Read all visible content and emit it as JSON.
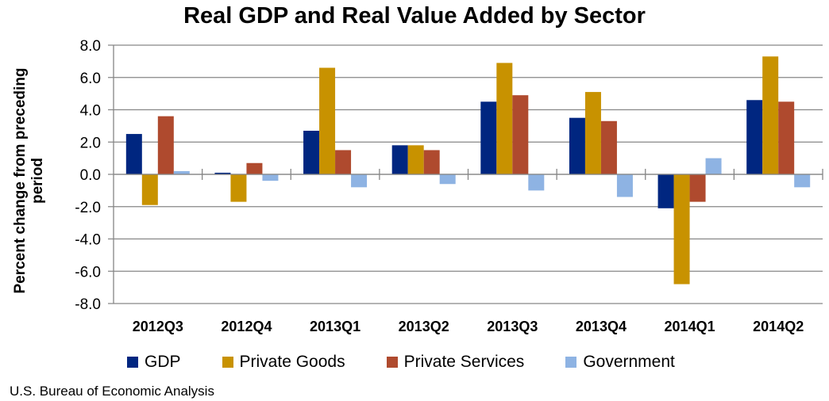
{
  "chart_data": {
    "type": "bar",
    "title": "Real GDP and Real Value Added by Sector",
    "xlabel": "",
    "ylabel": "Percent change from preceding period",
    "ylim": [
      -8,
      8
    ],
    "yticks": [
      "8.0",
      "6.0",
      "4.0",
      "2.0",
      "0.0",
      "-2.0",
      "-4.0",
      "-6.0",
      "-8.0"
    ],
    "categories": [
      "2012Q3",
      "2012Q4",
      "2013Q1",
      "2013Q2",
      "2013Q3",
      "2013Q4",
      "2014Q1",
      "2014Q2"
    ],
    "series": [
      {
        "name": "GDP",
        "color": "#002680",
        "values": [
          2.5,
          0.1,
          2.7,
          1.8,
          4.5,
          3.5,
          -2.1,
          4.6
        ]
      },
      {
        "name": "Private Goods",
        "color": "#C89200",
        "values": [
          -1.9,
          -1.7,
          6.6,
          1.8,
          6.9,
          5.1,
          -6.8,
          7.3
        ]
      },
      {
        "name": "Private Services",
        "color": "#AF4A2E",
        "values": [
          3.6,
          0.7,
          1.5,
          1.5,
          4.9,
          3.3,
          -1.7,
          4.5
        ]
      },
      {
        "name": "Government",
        "color": "#8EB3E3",
        "values": [
          0.2,
          -0.4,
          -0.8,
          -0.6,
          -1.0,
          -1.4,
          1.0,
          -0.8
        ]
      }
    ],
    "grid": true,
    "legend": "bottom"
  },
  "source": "U.S. Bureau of Economic Analysis"
}
